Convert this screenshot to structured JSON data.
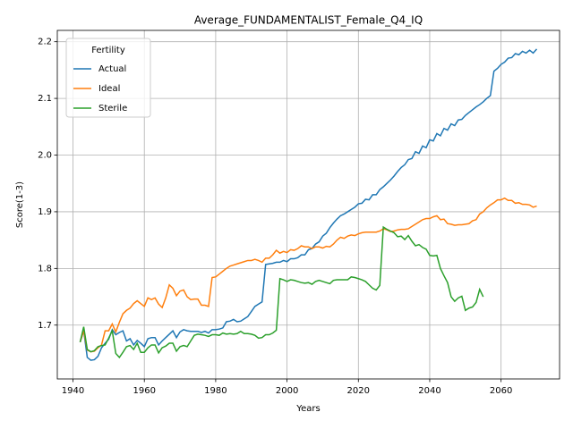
{
  "chart_data": {
    "type": "line",
    "title": "Average_FUNDAMENTALIST_Female_Q4_IQ",
    "x_label": "Years",
    "y_label": "Score(1-3)",
    "legend_title": "Fertility",
    "legend_loc": "upper left",
    "grid": true,
    "x": [
      1942,
      1943,
      1944,
      1945,
      1946,
      1947,
      1948,
      1949,
      1950,
      1951,
      1952,
      1953,
      1954,
      1955,
      1956,
      1957,
      1958,
      1959,
      1960,
      1961,
      1962,
      1963,
      1964,
      1965,
      1966,
      1967,
      1968,
      1969,
      1970,
      1971,
      1972,
      1973,
      1974,
      1975,
      1976,
      1977,
      1978,
      1979,
      1980,
      1981,
      1982,
      1983,
      1984,
      1985,
      1986,
      1987,
      1988,
      1989,
      1990,
      1991,
      1992,
      1993,
      1994,
      1995,
      1996,
      1997,
      1998,
      1999,
      2000,
      2001,
      2002,
      2003,
      2004,
      2005,
      2006,
      2007,
      2008,
      2009,
      2010,
      2011,
      2012,
      2013,
      2014,
      2015,
      2016,
      2017,
      2018,
      2019,
      2020,
      2021,
      2022,
      2023,
      2024,
      2025,
      2026,
      2027,
      2028,
      2029,
      2030,
      2031,
      2032,
      2033,
      2034,
      2035,
      2036,
      2037,
      2038,
      2039,
      2040,
      2041,
      2042,
      2043,
      2044,
      2045,
      2046,
      2047,
      2048,
      2049,
      2050,
      2051,
      2052,
      2053,
      2054,
      2055,
      2056,
      2057,
      2058,
      2059,
      2060,
      2061,
      2062,
      2063,
      2064,
      2065,
      2066,
      2067,
      2068,
      2069,
      2070
    ],
    "xlim": [
      1935.6,
      2076.4
    ],
    "xticks": [
      1940,
      1960,
      1980,
      2000,
      2020,
      2040,
      2060
    ],
    "ylim": [
      1.605,
      2.22
    ],
    "yticks": [
      1.7,
      1.8,
      1.9,
      {
        "value": 2,
        "label": "2.0"
      },
      2.1,
      2.2
    ],
    "series": [
      {
        "name": "Actual",
        "color": "#1f77b4",
        "values": [
          1.67,
          1.69,
          1.643,
          1.638,
          1.639,
          1.645,
          1.66,
          1.668,
          1.675,
          1.692,
          1.683,
          1.687,
          1.69,
          1.672,
          1.676,
          1.665,
          1.673,
          1.668,
          1.662,
          1.676,
          1.678,
          1.678,
          1.665,
          1.672,
          1.678,
          1.684,
          1.69,
          1.678,
          1.688,
          1.692,
          1.69,
          1.689,
          1.689,
          1.689,
          1.687,
          1.689,
          1.686,
          1.692,
          1.692,
          1.693,
          1.695,
          1.706,
          1.707,
          1.71,
          1.706,
          1.707,
          1.711,
          1.715,
          1.724,
          1.733,
          1.737,
          1.741,
          1.807,
          1.808,
          1.809,
          1.811,
          1.811,
          1.814,
          1.812,
          1.817,
          1.817,
          1.819,
          1.824,
          1.824,
          1.833,
          1.835,
          1.843,
          1.847,
          1.857,
          1.862,
          1.872,
          1.88,
          1.887,
          1.893,
          1.896,
          1.9,
          1.904,
          1.908,
          1.914,
          1.915,
          1.922,
          1.921,
          1.93,
          1.93,
          1.939,
          1.944,
          1.95,
          1.956,
          1.963,
          1.971,
          1.978,
          1.983,
          1.992,
          1.994,
          2.006,
          2.003,
          2.016,
          2.013,
          2.027,
          2.025,
          2.038,
          2.034,
          2.047,
          2.044,
          2.055,
          2.052,
          2.062,
          2.063,
          2.07,
          2.075,
          2.08,
          2.085,
          2.089,
          2.094,
          2.1,
          2.105,
          2.148,
          2.153,
          2.16,
          2.164,
          2.171,
          2.172,
          2.179,
          2.177,
          2.183,
          2.18,
          2.185,
          2.18,
          2.187
        ]
      },
      {
        "name": "Ideal",
        "color": "#ff7f0e",
        "values": [
          1.67,
          1.69,
          1.656,
          1.653,
          1.654,
          1.66,
          1.665,
          1.69,
          1.69,
          1.702,
          1.688,
          1.705,
          1.72,
          1.726,
          1.73,
          1.738,
          1.743,
          1.738,
          1.733,
          1.748,
          1.745,
          1.748,
          1.737,
          1.731,
          1.748,
          1.771,
          1.765,
          1.752,
          1.76,
          1.762,
          1.75,
          1.745,
          1.746,
          1.746,
          1.735,
          1.735,
          1.733,
          1.784,
          1.785,
          1.79,
          1.795,
          1.8,
          1.804,
          1.806,
          1.808,
          1.81,
          1.812,
          1.814,
          1.814,
          1.816,
          1.814,
          1.811,
          1.818,
          1.818,
          1.824,
          1.832,
          1.827,
          1.83,
          1.828,
          1.833,
          1.832,
          1.835,
          1.84,
          1.838,
          1.838,
          1.835,
          1.838,
          1.838,
          1.836,
          1.839,
          1.838,
          1.843,
          1.85,
          1.855,
          1.853,
          1.857,
          1.859,
          1.858,
          1.861,
          1.863,
          1.864,
          1.864,
          1.864,
          1.864,
          1.866,
          1.87,
          1.868,
          1.865,
          1.866,
          1.868,
          1.869,
          1.869,
          1.87,
          1.874,
          1.878,
          1.882,
          1.886,
          1.888,
          1.888,
          1.891,
          1.893,
          1.886,
          1.887,
          1.879,
          1.878,
          1.876,
          1.877,
          1.877,
          1.878,
          1.879,
          1.884,
          1.886,
          1.896,
          1.9,
          1.907,
          1.912,
          1.916,
          1.921,
          1.921,
          1.924,
          1.92,
          1.92,
          1.915,
          1.916,
          1.913,
          1.913,
          1.912,
          1.908,
          1.91
        ]
      },
      {
        "name": "Sterile",
        "color": "#2ca02c",
        "values": [
          1.67,
          1.697,
          1.657,
          1.653,
          1.655,
          1.662,
          1.664,
          1.665,
          1.677,
          1.69,
          1.65,
          1.643,
          1.652,
          1.662,
          1.664,
          1.657,
          1.668,
          1.652,
          1.652,
          1.66,
          1.665,
          1.665,
          1.651,
          1.66,
          1.663,
          1.668,
          1.668,
          1.654,
          1.662,
          1.664,
          1.662,
          1.672,
          1.682,
          1.684,
          1.683,
          1.682,
          1.68,
          1.683,
          1.683,
          1.682,
          1.686,
          1.684,
          1.685,
          1.684,
          1.685,
          1.689,
          1.685,
          1.685,
          1.684,
          1.682,
          1.677,
          1.678,
          1.683,
          1.683,
          1.686,
          1.691,
          1.782,
          1.78,
          1.777,
          1.78,
          1.779,
          1.777,
          1.775,
          1.774,
          1.775,
          1.772,
          1.777,
          1.779,
          1.777,
          1.775,
          1.773,
          1.779,
          1.78,
          1.78,
          1.78,
          1.78,
          1.785,
          1.784,
          1.782,
          1.78,
          1.777,
          1.771,
          1.765,
          1.762,
          1.77,
          1.873,
          1.869,
          1.866,
          1.863,
          1.856,
          1.857,
          1.851,
          1.858,
          1.848,
          1.84,
          1.842,
          1.837,
          1.834,
          1.823,
          1.822,
          1.823,
          1.8,
          1.787,
          1.775,
          1.75,
          1.742,
          1.748,
          1.751,
          1.726,
          1.73,
          1.732,
          1.74,
          1.763,
          1.75,
          null,
          null,
          null,
          null,
          null,
          null,
          null,
          null,
          null,
          null,
          null,
          null,
          null,
          null,
          null
        ]
      }
    ]
  }
}
